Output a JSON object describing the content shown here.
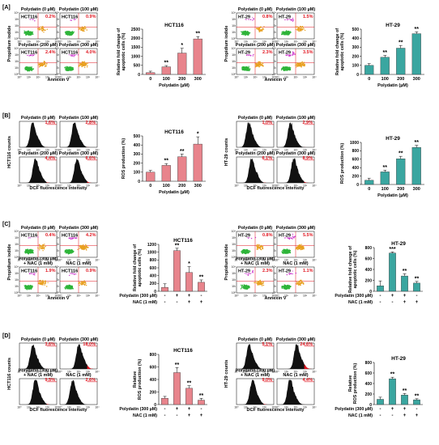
{
  "colors": {
    "pink": "#e8848c",
    "teal": "#3aa6a0",
    "red": "#e0141e",
    "green": "#2fb53a",
    "magenta": "#cc33cc",
    "orange": "#e8a020",
    "black": "#111111"
  },
  "panels": {
    "A": {
      "label": "[A]",
      "scatter": [
        {
          "cell": "HCT116",
          "titles": [
            "Polydatin (0 µM)",
            "Polydatin (100 µM)",
            "Polydatin (200 µM)",
            "Polydatin (300 µM)"
          ],
          "cells": [
            "HCT116",
            "HCT116",
            "HCT116",
            "HCT116"
          ],
          "percents": [
            "0.2%",
            "0.9%",
            "2.4%",
            "4.0%"
          ],
          "yLabel": "Propidium iodide",
          "xLabel": "Annexin V"
        },
        {
          "cell": "HT-29",
          "titles": [
            "Polydatin (0 µM)",
            "Polydatin (100 µM)",
            "Polydatin (200 µM)",
            "Polydatin (300 µM)"
          ],
          "cells": [
            "HT-29",
            "HT-29",
            "HT-29",
            "HT-29"
          ],
          "percents": [
            "0.8%",
            "1.5%",
            "2.3%",
            "3.5%"
          ],
          "yLabel": "Propidium iodide",
          "xLabel": "Annexin V"
        }
      ]
    },
    "B": {
      "label": "[B]",
      "hist": [
        {
          "titles": [
            "Polydatin (0 µM)",
            "Polydatin (100 µM)",
            "Polydatin (200 µM)",
            "Polydatin (300 µM)"
          ],
          "percents": [
            "1.6%",
            "2.8%",
            "4.4%",
            "6.6%"
          ],
          "yLabel": "HCT116 counts",
          "xLabel": "DCF fluorescence intensity"
        },
        {
          "titles": [
            "Polydatin (0 µM)",
            "Polydatin (100 µM)",
            "Polydatin (200 µM)",
            "Polydatin (300 µM)"
          ],
          "percents": [
            "1.0%",
            "2.9%",
            "6.1%",
            "8.9%"
          ],
          "yLabel": "HT-29 counts",
          "xLabel": "DCF fluorescence intensity"
        }
      ]
    },
    "C": {
      "label": "[C]",
      "scatter": [
        {
          "titles": [
            "Polydatin (0 µM)",
            "Polydatin (300 µM)",
            "Polydatin (300 µM)\n+ NAC (1 mM)",
            "NAC (1 mM)"
          ],
          "cells": [
            "HCT116",
            "HCT116",
            "HCT116",
            "HCT116"
          ],
          "percents": [
            "0.4%",
            "4.2%",
            "1.9%",
            "0.9%"
          ],
          "yLabel": "Propidium iodide",
          "xLabel": "Annexin V"
        },
        {
          "titles": [
            "Polydatin (0 µM)",
            "Polydatin (300 µM)",
            "Polydatin (300 µM)\n+ NAC (1 mM)",
            "NAC (1 mM)"
          ],
          "cells": [
            "HT-29",
            "HT-29",
            "HT-29",
            "HT-29"
          ],
          "percents": [
            "0.8%",
            "5.5%",
            "2.3%",
            "1.1%"
          ],
          "yLabel": "Propidium iodide",
          "xLabel": "Annexin V"
        }
      ]
    },
    "D": {
      "label": "[D]",
      "hist": [
        {
          "titles": [
            "Polydatin (0 µM)",
            "Polydatin (300 µM)",
            "Polydatin (300 µM)\n+ NAC (1 mM)",
            "NAC (1 mM)"
          ],
          "percents": [
            "3.6%",
            "18.0%",
            "9.5%",
            "2.6%"
          ],
          "yLabel": "HCT116 counts",
          "xLabel": "DCF fluorescence intensity"
        },
        {
          "titles": [
            "Polydatin (0 µM)",
            "Polydatin (300 µM)",
            "Polydatin (300 µM)\n+ NAC (1 mM)",
            "NAC (1 mM)"
          ],
          "percents": [
            "5.1%",
            "24.6%",
            "9.0%",
            "4.4%"
          ],
          "yLabel": "HT-29 counts",
          "xLabel": "DCF fluorescence intensity"
        }
      ]
    }
  },
  "ticks": {
    "log": [
      "10⁰",
      "10¹",
      "10²",
      "10³",
      "10⁴"
    ]
  },
  "chart_data": [
    {
      "type": "bar",
      "panel": "A",
      "title": "HCT116",
      "ylabel": "Relative fold change of apoptotic cells (%)",
      "xlabel": "Polydatin (µM)",
      "categories": [
        "0",
        "100",
        "200",
        "300"
      ],
      "values": [
        100,
        420,
        1180,
        1960
      ],
      "errors": [
        80,
        70,
        260,
        130
      ],
      "sig": [
        "",
        "**",
        "*",
        "**"
      ],
      "ylim": [
        0,
        2500
      ],
      "yticks": [
        0,
        500,
        1000,
        1500,
        2000,
        2500
      ],
      "color": "pink"
    },
    {
      "type": "bar",
      "panel": "A",
      "title": "HT-29",
      "ylabel": "Relative fold change of apoptotic cells (%)",
      "xlabel": "Polydatin (µM)",
      "categories": [
        "0",
        "100",
        "200",
        "300"
      ],
      "values": [
        100,
        190,
        290,
        450
      ],
      "errors": [
        20,
        20,
        30,
        20
      ],
      "sig": [
        "",
        "**",
        "**",
        "**"
      ],
      "ylim": [
        0,
        500
      ],
      "yticks": [
        0,
        100,
        200,
        300,
        400,
        500
      ],
      "color": "teal"
    },
    {
      "type": "bar",
      "panel": "B",
      "title": "HCT116",
      "ylabel": "ROS production (%)",
      "xlabel": "Polydatin (µM)",
      "categories": [
        "0",
        "100",
        "200",
        "300"
      ],
      "values": [
        100,
        175,
        270,
        410
      ],
      "errors": [
        20,
        20,
        30,
        80
      ],
      "sig": [
        "",
        "**",
        "**",
        "*"
      ],
      "ylim": [
        0,
        500
      ],
      "yticks": [
        0,
        100,
        200,
        300,
        400,
        500
      ],
      "color": "pink"
    },
    {
      "type": "bar",
      "panel": "B",
      "title": "HT-29",
      "ylabel": "ROS production (%)",
      "xlabel": "Polydatin (µM)",
      "categories": [
        "0",
        "100",
        "200",
        "300"
      ],
      "values": [
        100,
        300,
        610,
        880
      ],
      "errors": [
        50,
        40,
        60,
        50
      ],
      "sig": [
        "",
        "**",
        "**",
        "**"
      ],
      "ylim": [
        0,
        1000
      ],
      "yticks": [
        0,
        200,
        400,
        600,
        800,
        1000
      ],
      "color": "teal"
    },
    {
      "type": "bar",
      "panel": "C",
      "title": "HCT116",
      "ylabel": "Relative fold change of apoptotic cells (%)",
      "rowLabels": [
        "Polydatin (300 µM)",
        "NAC (1 mM)"
      ],
      "rowMarks": [
        [
          "-",
          "+",
          "+",
          "-"
        ],
        [
          "-",
          "-",
          "+",
          "+"
        ]
      ],
      "values": [
        100,
        1040,
        480,
        230
      ],
      "errors": [
        90,
        60,
        150,
        60
      ],
      "sig": [
        "",
        "**",
        "*",
        "**"
      ],
      "ylim": [
        0,
        1200
      ],
      "yticks": [
        0,
        200,
        400,
        600,
        800,
        1000,
        1200
      ],
      "color": "pink"
    },
    {
      "type": "bar",
      "panel": "C",
      "title": "HT-29",
      "ylabel": "Relative fold change of apoptotic cells (%)",
      "rowLabels": [
        "Polydatin (300 µM)",
        "NAC (1 mM)"
      ],
      "rowMarks": [
        [
          "-",
          "+",
          "+",
          "-"
        ],
        [
          "-",
          "-",
          "+",
          "+"
        ]
      ],
      "values": [
        100,
        700,
        280,
        150
      ],
      "errors": [
        90,
        20,
        40,
        30
      ],
      "sig": [
        "",
        "***",
        "**",
        "**"
      ],
      "ylim": [
        0,
        800
      ],
      "yticks": [
        0,
        200,
        400,
        600,
        800
      ],
      "color": "teal"
    },
    {
      "type": "bar",
      "panel": "D",
      "title": "HCT116",
      "ylabel": "Relative ROS production (%)",
      "rowLabels": [
        "Polydatin (300 µM)",
        "NAC (1 mM)"
      ],
      "rowMarks": [
        [
          "-",
          "+",
          "+",
          "-"
        ],
        [
          "-",
          "-",
          "+",
          "+"
        ]
      ],
      "values": [
        100,
        510,
        260,
        70
      ],
      "errors": [
        30,
        80,
        40,
        30
      ],
      "sig": [
        "",
        "**",
        "**",
        "**"
      ],
      "ylim": [
        0,
        800
      ],
      "yticks": [
        0,
        200,
        400,
        600,
        800
      ],
      "color": "pink"
    },
    {
      "type": "bar",
      "panel": "D",
      "title": "HT-29",
      "ylabel": "Relative ROS production (%)",
      "rowLabels": [
        "Polydatin (300 µM)",
        "NAC (1 mM)"
      ],
      "rowMarks": [
        [
          "-",
          "+",
          "+",
          "-"
        ],
        [
          "-",
          "-",
          "+",
          "+"
        ]
      ],
      "values": [
        100,
        490,
        180,
        90
      ],
      "errors": [
        40,
        30,
        30,
        20
      ],
      "sig": [
        "",
        "**",
        "**",
        "**"
      ],
      "ylim": [
        0,
        800
      ],
      "yticks": [
        0,
        200,
        400,
        600,
        800
      ],
      "color": "teal"
    }
  ]
}
